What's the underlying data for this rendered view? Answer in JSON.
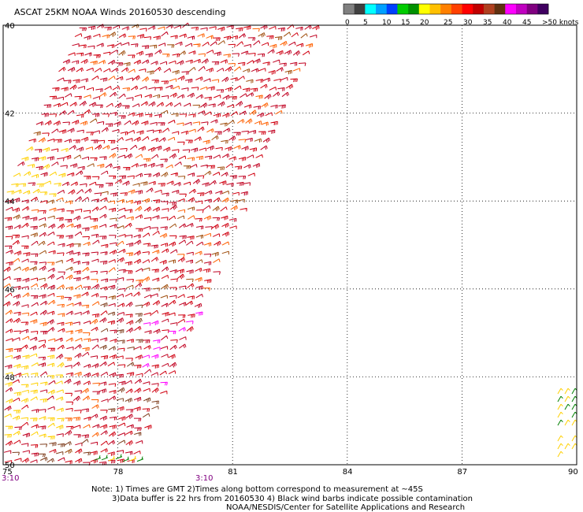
{
  "header": {
    "title": "ASCAT 25KM NOAA Winds 20160530 descending"
  },
  "colorbar": {
    "labels": [
      "0",
      "5",
      "10",
      "15",
      "20",
      "25",
      "30",
      "35",
      "40",
      "45",
      ">50 knots"
    ],
    "colors": [
      "#808080",
      "#404040",
      "#00ffff",
      "#00a0ff",
      "#0040ff",
      "#00cc00",
      "#009000",
      "#ffff00",
      "#ffc000",
      "#ff8000",
      "#ff4000",
      "#ff0000",
      "#c00000",
      "#b04020",
      "#603010",
      "#ff00ff",
      "#c000c0",
      "#800080",
      "#400060"
    ]
  },
  "map": {
    "lat_labels": [
      "40",
      "42",
      "44",
      "46",
      "48",
      "50"
    ],
    "lon_labels": [
      "75",
      "78",
      "81",
      "84",
      "87",
      "90"
    ],
    "time_labels": [
      "3:10",
      "3:10"
    ],
    "lat_range": [
      -40,
      -50
    ],
    "lon_range": [
      75,
      90
    ],
    "grid": "dotted",
    "barb_colors": {
      "dominant": "#d00010",
      "mix": [
        "#e00010",
        "#c00020",
        "#ff6000",
        "#a05010",
        "#ffd000",
        "#ff00ff",
        "#804020",
        "#008000"
      ]
    }
  },
  "notes": {
    "line1": "Note: 1) Times are GMT 2)Times along bottom correspond to measurement at ~45S",
    "line2": "3)Data buffer is 22 hrs from 20160530 4) Black wind barbs indicate possible contamination",
    "line3": "NOAA/NESDIS/Center for Satellite Applications and Research"
  }
}
